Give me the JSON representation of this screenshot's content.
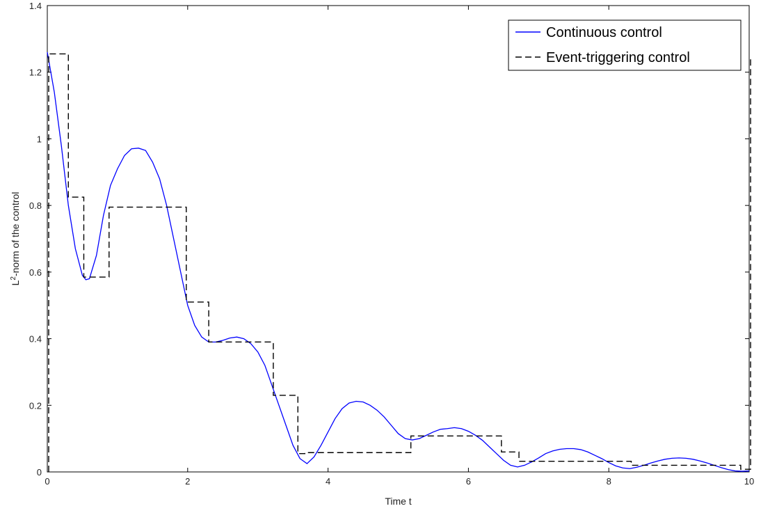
{
  "chart_data": {
    "type": "line",
    "title": "",
    "xlabel": "Time t",
    "ylabel": "L²-norm of the control",
    "ylabel_parts": {
      "prefix": "L",
      "superscript": "2",
      "suffix": "-norm of the control"
    },
    "xlim": [
      0,
      10
    ],
    "ylim": [
      0,
      1.4
    ],
    "xticks": [
      0,
      2,
      4,
      6,
      8,
      10
    ],
    "yticks": [
      0,
      0.2,
      0.4,
      0.6,
      0.8,
      1,
      1.2,
      1.4
    ],
    "xtick_labels": [
      "0",
      "2",
      "4",
      "6",
      "8",
      "10"
    ],
    "ytick_labels": [
      "0",
      "0.2",
      "0.4",
      "0.6",
      "0.8",
      "1",
      "1.2",
      "1.4"
    ],
    "grid": false,
    "legend_position": "top-right",
    "series": [
      {
        "name": "Continuous control",
        "style": "solid",
        "color": "#0000ff",
        "x": [
          0,
          0.1,
          0.2,
          0.3,
          0.4,
          0.5,
          0.55,
          0.6,
          0.7,
          0.8,
          0.9,
          1.0,
          1.1,
          1.2,
          1.3,
          1.4,
          1.5,
          1.6,
          1.7,
          1.8,
          1.9,
          2.0,
          2.1,
          2.2,
          2.3,
          2.4,
          2.5,
          2.6,
          2.7,
          2.8,
          2.9,
          3.0,
          3.1,
          3.2,
          3.3,
          3.4,
          3.5,
          3.6,
          3.7,
          3.8,
          3.9,
          4.0,
          4.1,
          4.2,
          4.3,
          4.4,
          4.5,
          4.6,
          4.7,
          4.8,
          4.9,
          5.0,
          5.1,
          5.2,
          5.3,
          5.4,
          5.5,
          5.6,
          5.7,
          5.8,
          5.9,
          6.0,
          6.1,
          6.2,
          6.3,
          6.4,
          6.5,
          6.6,
          6.7,
          6.8,
          6.9,
          7.0,
          7.1,
          7.2,
          7.3,
          7.4,
          7.5,
          7.6,
          7.7,
          7.8,
          7.9,
          8.0,
          8.1,
          8.2,
          8.3,
          8.4,
          8.5,
          8.6,
          8.7,
          8.8,
          8.9,
          9.0,
          9.1,
          9.2,
          9.3,
          9.4,
          9.5,
          9.6,
          9.7,
          9.8,
          9.9,
          10.0
        ],
        "y": [
          1.26,
          1.14,
          0.98,
          0.8,
          0.67,
          0.59,
          0.577,
          0.58,
          0.65,
          0.77,
          0.86,
          0.91,
          0.95,
          0.97,
          0.972,
          0.965,
          0.93,
          0.88,
          0.8,
          0.7,
          0.6,
          0.5,
          0.44,
          0.405,
          0.39,
          0.39,
          0.395,
          0.402,
          0.405,
          0.4,
          0.385,
          0.36,
          0.32,
          0.26,
          0.2,
          0.14,
          0.08,
          0.04,
          0.025,
          0.045,
          0.08,
          0.12,
          0.16,
          0.19,
          0.207,
          0.212,
          0.21,
          0.2,
          0.185,
          0.165,
          0.14,
          0.115,
          0.1,
          0.096,
          0.1,
          0.11,
          0.12,
          0.128,
          0.13,
          0.133,
          0.13,
          0.122,
          0.11,
          0.095,
          0.075,
          0.055,
          0.035,
          0.02,
          0.015,
          0.02,
          0.03,
          0.042,
          0.055,
          0.063,
          0.068,
          0.07,
          0.07,
          0.067,
          0.06,
          0.05,
          0.04,
          0.028,
          0.018,
          0.012,
          0.01,
          0.014,
          0.02,
          0.027,
          0.033,
          0.038,
          0.041,
          0.042,
          0.041,
          0.038,
          0.033,
          0.027,
          0.02,
          0.013,
          0.007,
          0.003,
          0.002,
          0.003
        ]
      },
      {
        "name": "Event-triggering control",
        "style": "dashed",
        "color": "#000000",
        "x": [
          0.02,
          0.02,
          0.3,
          0.3,
          0.52,
          0.52,
          0.88,
          0.88,
          1.98,
          1.98,
          2.3,
          2.3,
          3.22,
          3.22,
          3.57,
          3.57,
          3.67,
          3.67,
          5.18,
          5.18,
          6.47,
          6.47,
          6.72,
          6.72,
          8.32,
          8.32,
          9.88,
          9.88,
          10.02,
          10.02
        ],
        "y": [
          0,
          1.255,
          1.255,
          0.825,
          0.825,
          0.585,
          0.585,
          0.795,
          0.795,
          0.51,
          0.51,
          0.39,
          0.39,
          0.23,
          0.23,
          0.055,
          0.055,
          0.058,
          0.058,
          0.108,
          0.108,
          0.06,
          0.06,
          0.032,
          0.032,
          0.02,
          0.02,
          0.008,
          0.008,
          1.24
        ]
      }
    ]
  }
}
